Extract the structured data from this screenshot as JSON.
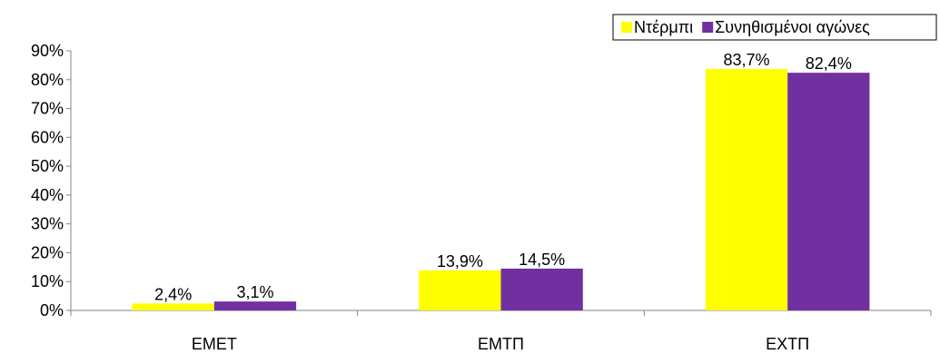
{
  "chart_data": {
    "type": "bar",
    "categories": [
      "ΕΜΕΤ",
      "ΕΜΤΠ",
      "ΕΧΤΠ"
    ],
    "series": [
      {
        "name": "Ντέρμπι",
        "values": [
          2.4,
          13.9,
          83.7
        ],
        "labels": [
          "2,4%",
          "13,9%",
          "83,7%"
        ],
        "color": "#FFFF00"
      },
      {
        "name": "Συνηθισμένοι αγώνες",
        "values": [
          3.1,
          14.5,
          82.4
        ],
        "labels": [
          "3,1%",
          "14,5%",
          "82,4%"
        ],
        "color": "#7030A0"
      }
    ],
    "ylim": [
      0,
      90
    ],
    "yticks": [
      "0%",
      "10%",
      "20%",
      "30%",
      "40%",
      "50%",
      "60%",
      "70%",
      "80%",
      "90%"
    ],
    "grid": false,
    "legend": "top-right"
  }
}
